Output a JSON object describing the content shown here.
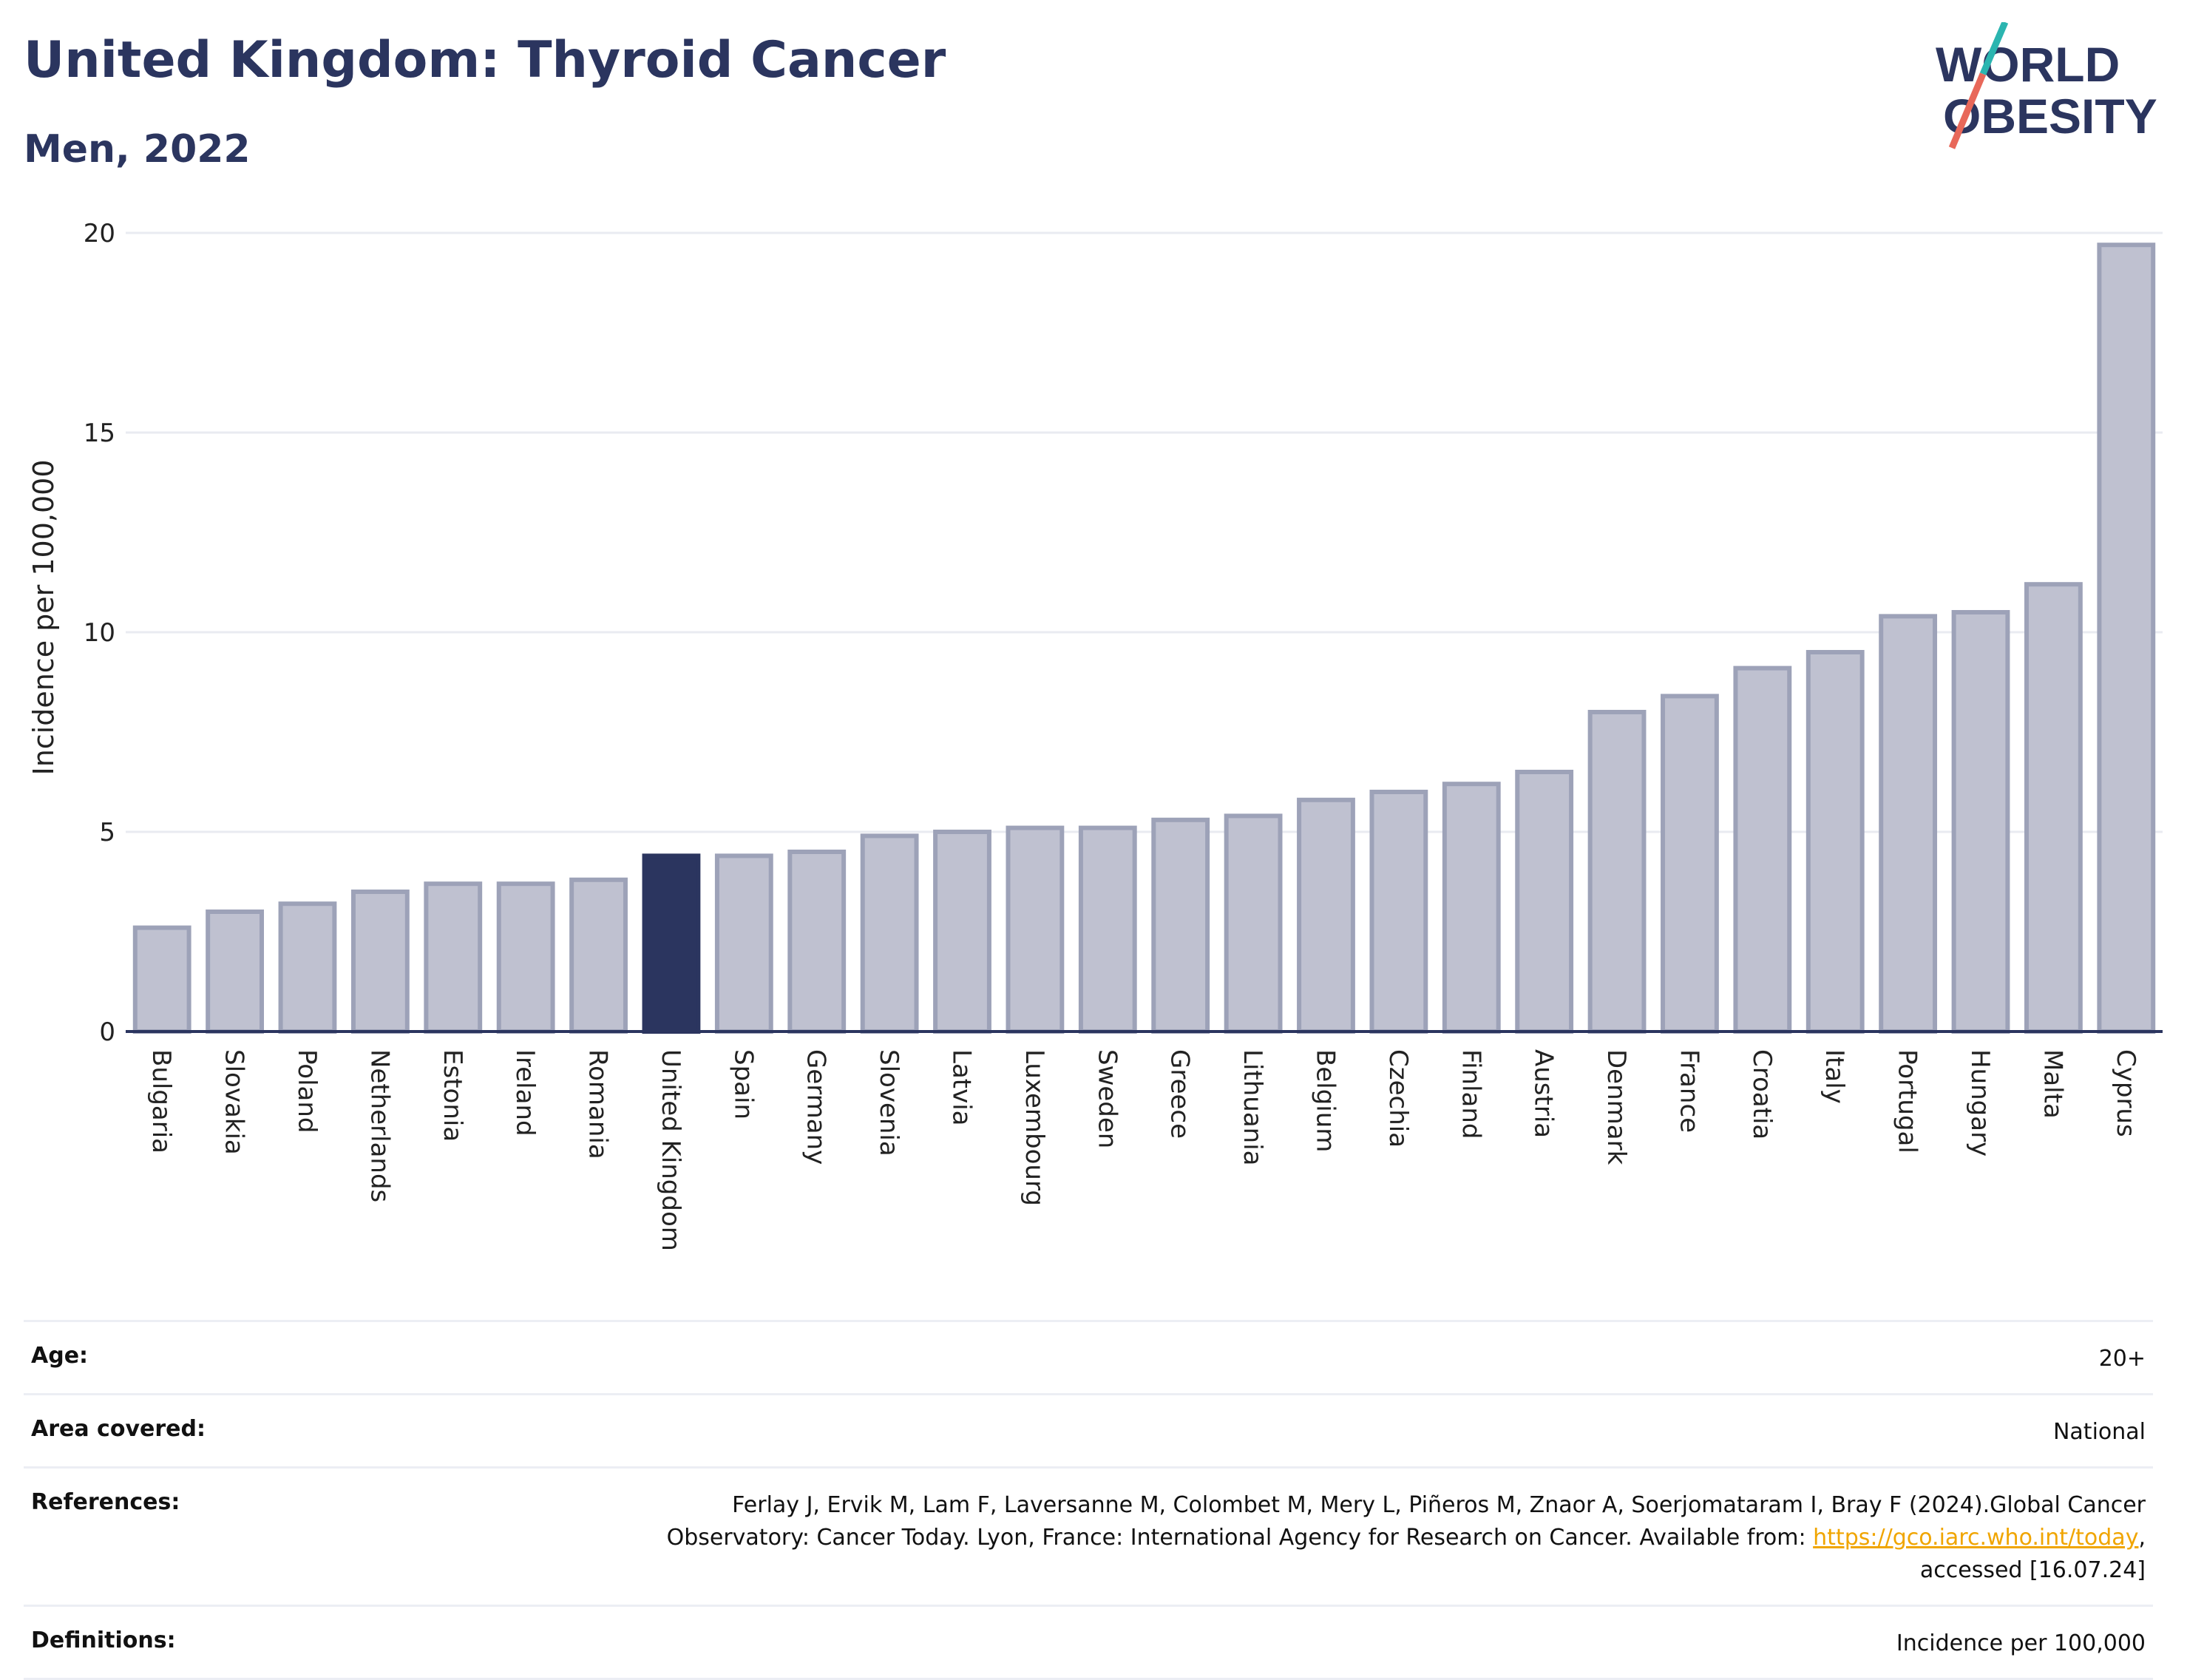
{
  "header": {
    "title": "United Kingdom: Thyroid Cancer",
    "subtitle": "Men, 2022"
  },
  "logo": {
    "line1": "WORLD",
    "line2": "OBESITY",
    "colors": {
      "text": "#2b355f",
      "slash_teal": "#2bb5b0",
      "slash_red": "#e8685a"
    }
  },
  "chart_data": {
    "type": "bar",
    "ylabel": "Incidence per 100,000",
    "xlabel": "",
    "ylim": [
      0,
      20
    ],
    "yticks": [
      0,
      5,
      10,
      15,
      20
    ],
    "grid": true,
    "highlight": "United Kingdom",
    "colors": {
      "bar": "#bfc1d0",
      "bar_border": "#9da2b8",
      "highlight": "#2b355f",
      "grid": "#e9ebf1",
      "axis": "#2b355f"
    },
    "categories": [
      "Bulgaria",
      "Slovakia",
      "Poland",
      "Netherlands",
      "Estonia",
      "Ireland",
      "Romania",
      "United Kingdom",
      "Spain",
      "Germany",
      "Slovenia",
      "Latvia",
      "Luxembourg",
      "Sweden",
      "Greece",
      "Lithuania",
      "Belgium",
      "Czechia",
      "Finland",
      "Austria",
      "Denmark",
      "France",
      "Croatia",
      "Italy",
      "Portugal",
      "Hungary",
      "Malta",
      "Cyprus"
    ],
    "values": [
      2.6,
      3.0,
      3.2,
      3.5,
      3.7,
      3.7,
      3.8,
      4.4,
      4.4,
      4.5,
      4.9,
      5.0,
      5.1,
      5.1,
      5.3,
      5.4,
      5.8,
      6.0,
      6.2,
      6.5,
      8.0,
      8.4,
      9.1,
      9.5,
      10.4,
      10.5,
      11.2,
      19.7
    ]
  },
  "meta": {
    "rows": [
      {
        "label": "Age:",
        "value": "20+"
      },
      {
        "label": "Area covered:",
        "value": "National"
      },
      {
        "label": "References:",
        "value_line1": "Ferlay J, Ervik M, Lam F, Laversanne M, Colombet M, Mery L, Piñeros M, Znaor A, Soerjomataram I, Bray F (2024).Global Cancer",
        "value_line2_pre": "Observatory: Cancer Today. Lyon, France: International Agency for Research on Cancer. Available from: ",
        "link": "https://gco.iarc.who.int/today",
        "value_line2_post": ",",
        "value_line3": "accessed [16.07.24]"
      },
      {
        "label": "Definitions:",
        "value": "Incidence per 100,000"
      }
    ]
  }
}
